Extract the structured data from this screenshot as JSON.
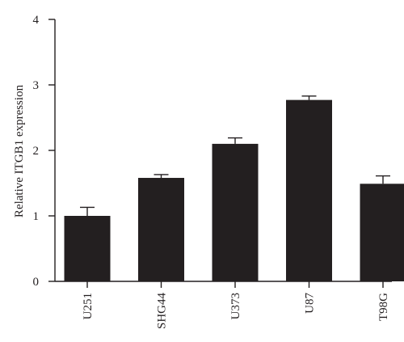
{
  "chart_data": {
    "type": "bar",
    "title": "",
    "xlabel": "",
    "ylabel": "Relative ITGB1 expression",
    "ylim": [
      0,
      4
    ],
    "yticks": [
      0,
      1,
      2,
      3,
      4
    ],
    "categories": [
      "U251",
      "SHG44",
      "U373",
      "U87",
      "T98G"
    ],
    "values": [
      1.0,
      1.58,
      2.1,
      2.77,
      1.49
    ],
    "errors": [
      0.13,
      0.05,
      0.09,
      0.06,
      0.12
    ],
    "grid": false,
    "legend": "none",
    "bar_color": "#231f20"
  }
}
